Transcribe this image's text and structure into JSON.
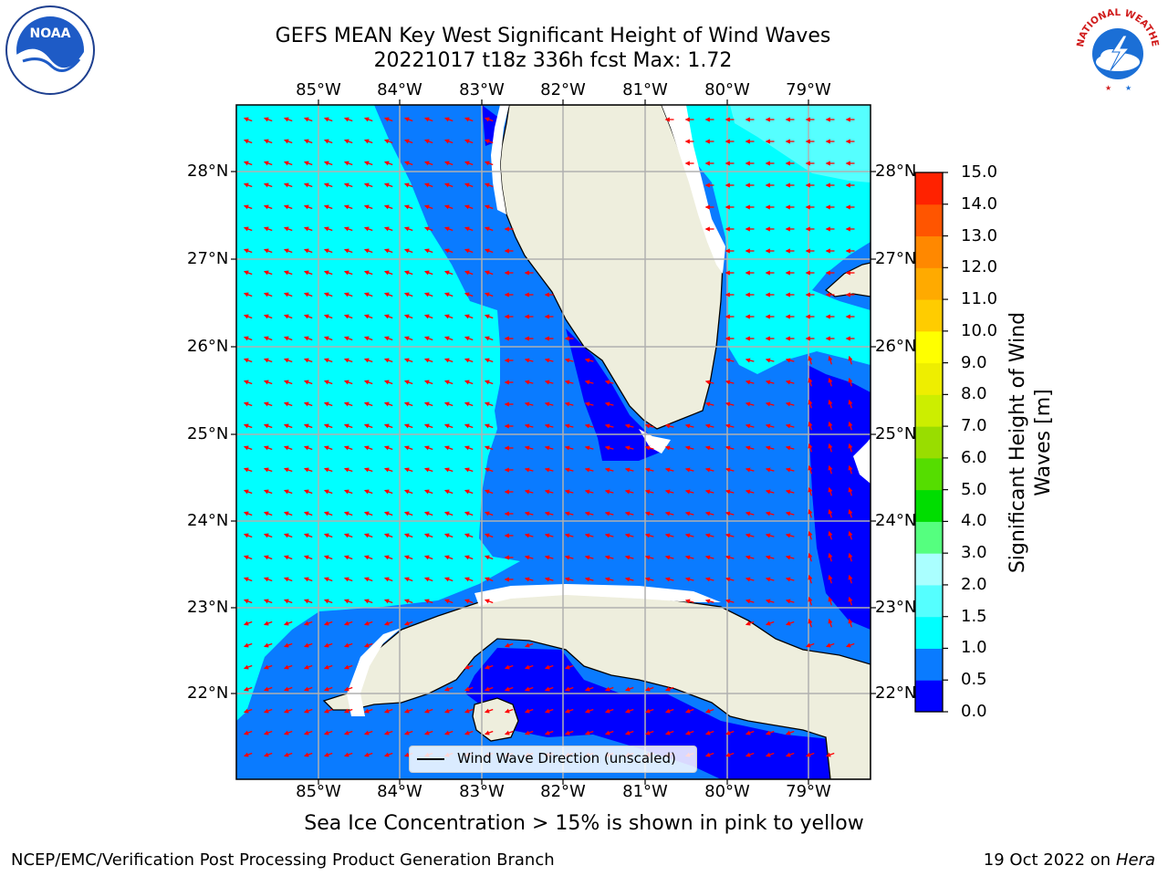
{
  "title": {
    "line1": "GEFS MEAN Key West Significant Height of Wind Waves",
    "line2": "20221017 t18z 336h fcst   Max: 1.72"
  },
  "lon_labels": [
    "85°W",
    "84°W",
    "83°W",
    "82°W",
    "81°W",
    "80°W",
    "79°W"
  ],
  "lat_labels": [
    "28°N",
    "27°N",
    "26°N",
    "25°N",
    "24°N",
    "23°N",
    "22°N"
  ],
  "colorbar": {
    "title_line1": "Significant Height of Wind",
    "title_line2": "Waves [m]",
    "ticks": [
      "0.0",
      "0.5",
      "1.0",
      "1.5",
      "2.0",
      "3.0",
      "4.0",
      "5.0",
      "6.0",
      "7.0",
      "8.0",
      "9.0",
      "10.0",
      "11.0",
      "12.0",
      "13.0",
      "14.0",
      "15.0"
    ],
    "colors": [
      "#0000ff",
      "#0a7bff",
      "#00ffff",
      "#55ffff",
      "#aaffff",
      "#55ff7f",
      "#00dd00",
      "#55dd00",
      "#99dd00",
      "#ccee00",
      "#eeee00",
      "#ffff00",
      "#ffcc00",
      "#ffaa00",
      "#ff8800",
      "#ff5500",
      "#ff2200"
    ]
  },
  "map_colors": {
    "deep_blue": "#0000ff",
    "mid_blue": "#0a7bff",
    "cyan": "#00ffff",
    "light_cyan": "#55ffff",
    "land": "#eeeedd",
    "arrow": "#ff0000",
    "grid": "#b0b0b0"
  },
  "legend": {
    "label": "Wind Wave Direction (unscaled)"
  },
  "logos": {
    "noaa": "NOAA",
    "nws": "NATIONAL WEATHER SERVICE"
  },
  "note": "Sea Ice Concentration > 15% is shown in pink to yellow",
  "footer": {
    "left": "NCEP/EMC/Verification Post Processing Product Generation Branch",
    "right_date": "19 Oct 2022 on ",
    "right_host": "Hera"
  }
}
